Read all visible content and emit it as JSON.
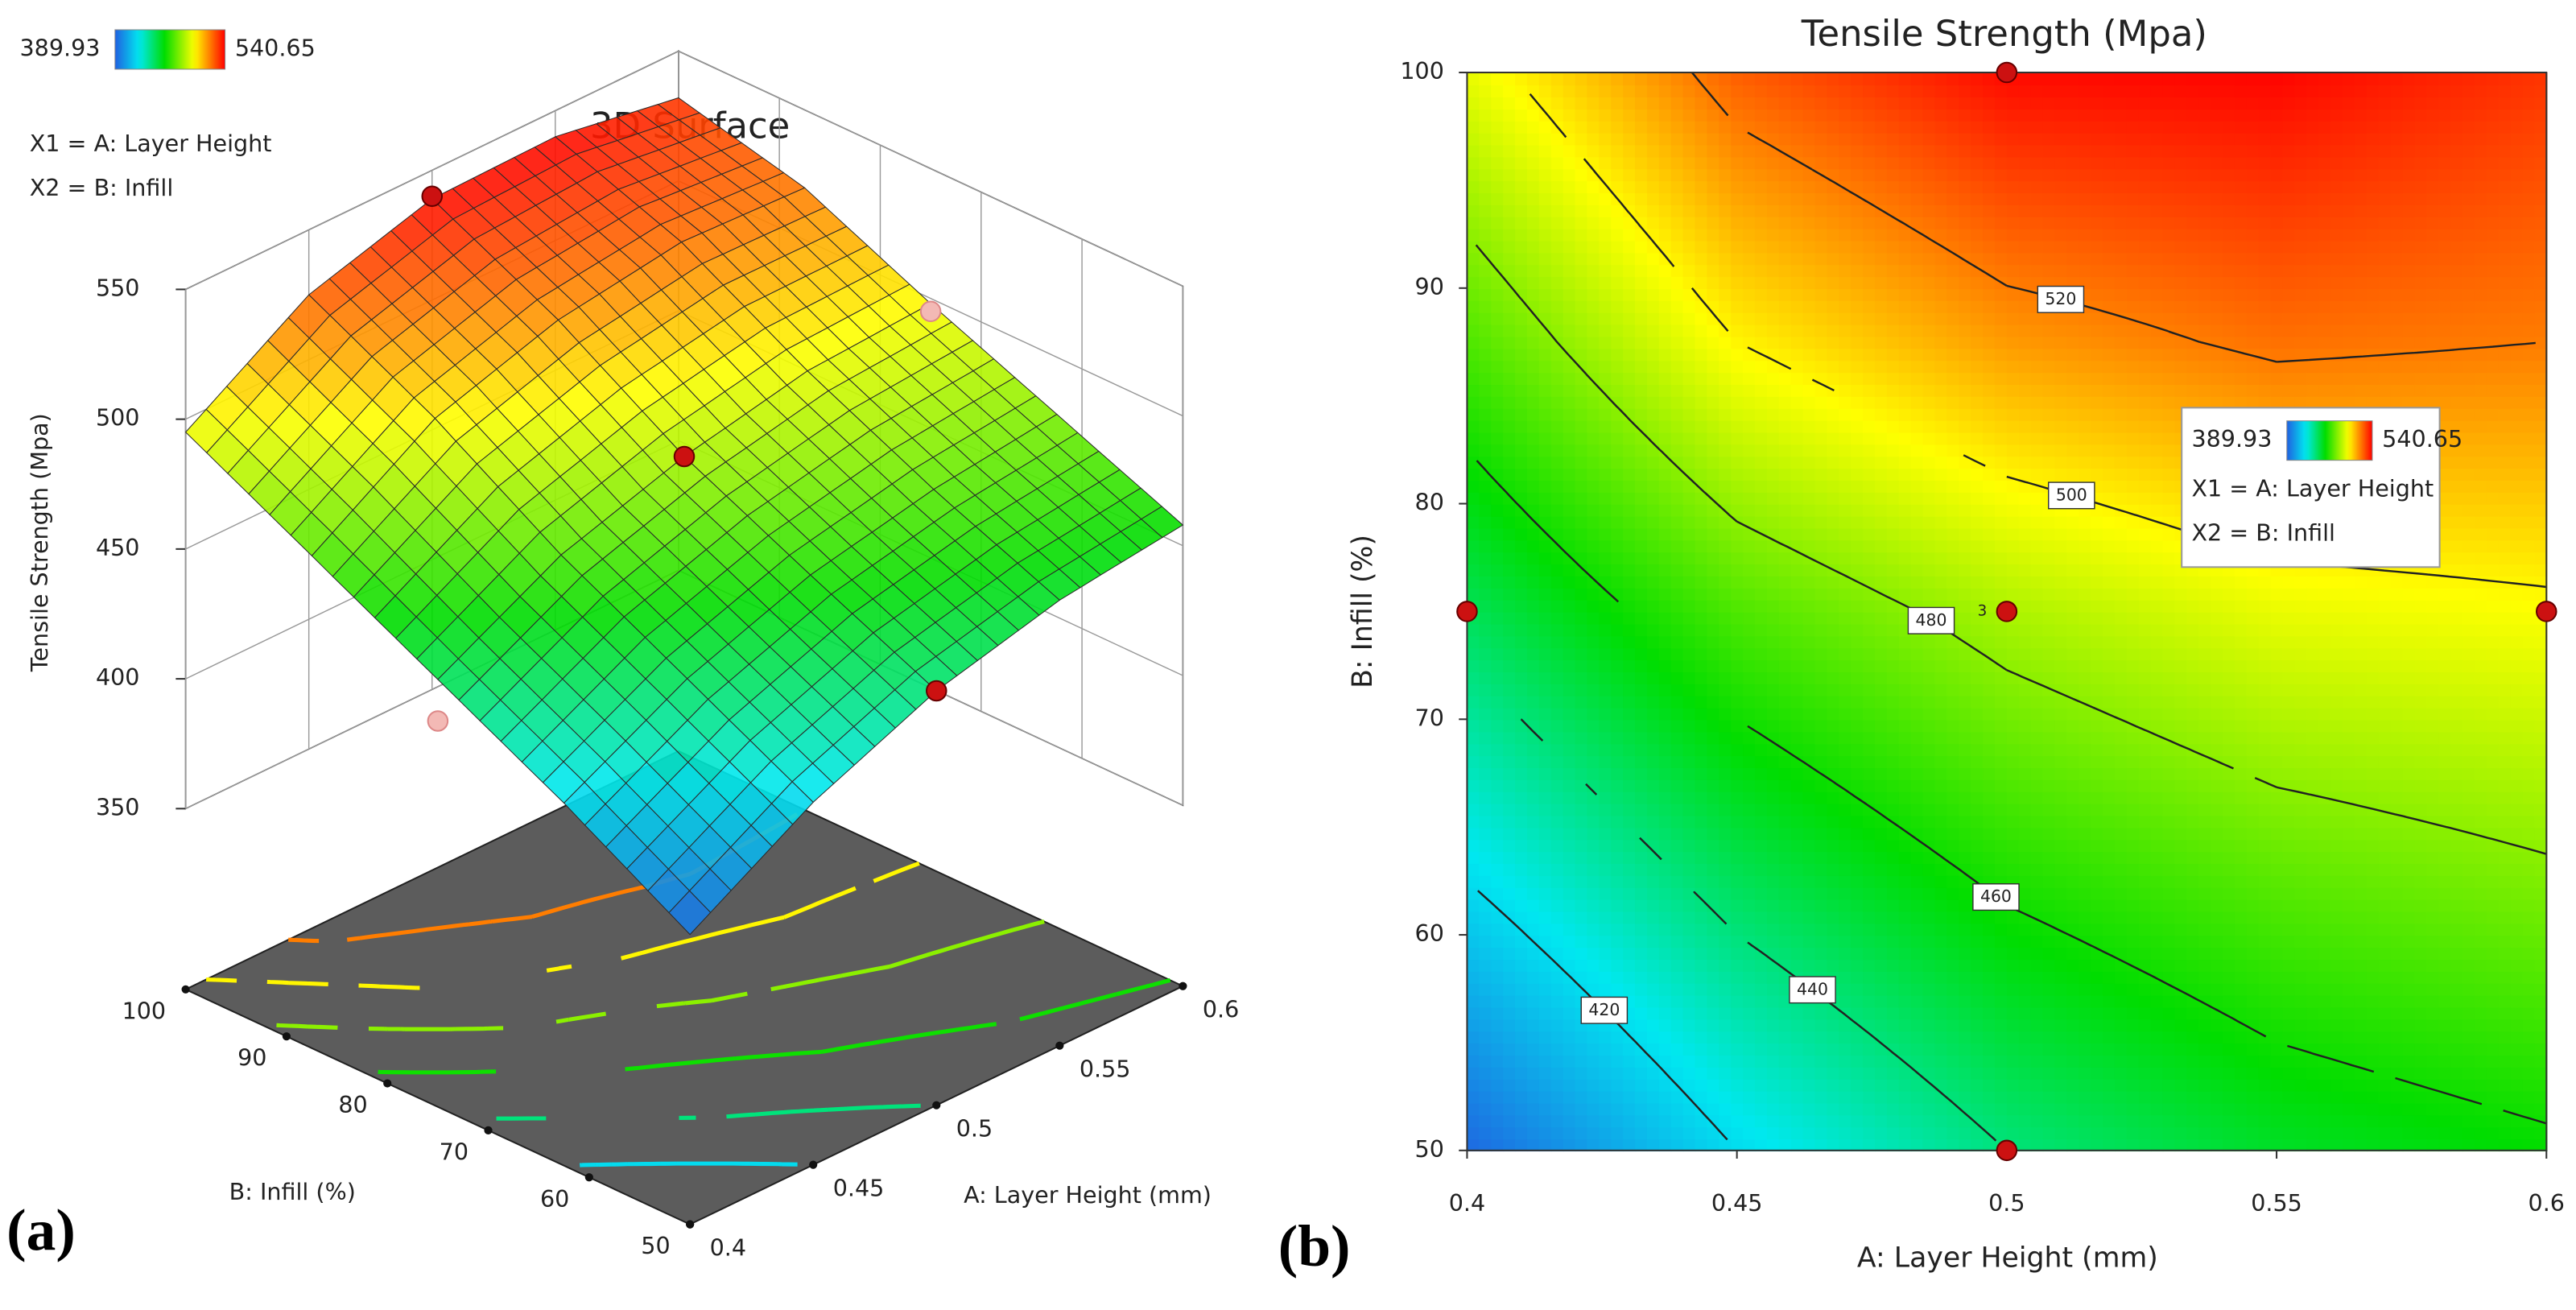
{
  "chart_data": [
    {
      "type": "surface",
      "title": "3D Surface",
      "panel_label": "(a)",
      "colorbar": [
        389.93,
        540.65
      ],
      "notes": [
        "X1 = A: Layer Height",
        "X2 = B: Infill"
      ],
      "xlabel": "A: Layer Height (mm)",
      "ylabel": "B: Infill (%)",
      "zlabel": "Tensile Strength (Mpa)",
      "x": [
        0.4,
        0.45,
        0.5,
        0.55,
        0.6
      ],
      "y": [
        50,
        62.5,
        75,
        87.5,
        100
      ],
      "z": [
        [
          392,
          420,
          440,
          452,
          458
        ],
        [
          420,
          445,
          462,
          472,
          478
        ],
        [
          445,
          470,
          485,
          495,
          498
        ],
        [
          470,
          500,
          515,
          522,
          520
        ],
        [
          495,
          525,
          539,
          540,
          532
        ]
      ],
      "xlim": [
        0.4,
        0.6
      ],
      "xticks": [
        0.4,
        0.45,
        0.5,
        0.55,
        0.6
      ],
      "ylim": [
        50,
        100
      ],
      "yticks": [
        50,
        60,
        70,
        80,
        90,
        100
      ],
      "zlim": [
        350,
        550
      ],
      "zticks": [
        350,
        400,
        450,
        500,
        550
      ],
      "levels": [
        420,
        440,
        460,
        480,
        500,
        520,
        540
      ],
      "points": {
        "x": [
          0.5,
          0.5,
          0.5,
          0.4,
          0.6
        ],
        "y": [
          100,
          75,
          50,
          75,
          75
        ],
        "z": [
          540,
          485,
          440,
          429,
          495
        ]
      }
    },
    {
      "type": "contour",
      "title": "Tensile Strength (Mpa)",
      "panel_label": "(b)",
      "colorbar": [
        389.93,
        540.65
      ],
      "notes": [
        "X1 = A: Layer Height",
        "X2 = B: Infill"
      ],
      "xlabel": "A: Layer Height (mm)",
      "ylabel": "B: Infill (%)",
      "x": [
        0.4,
        0.45,
        0.5,
        0.55,
        0.6
      ],
      "y": [
        50,
        62.5,
        75,
        87.5,
        100
      ],
      "z": [
        [
          392,
          420,
          440,
          452,
          458
        ],
        [
          420,
          445,
          462,
          472,
          478
        ],
        [
          445,
          470,
          485,
          495,
          498
        ],
        [
          470,
          500,
          515,
          522,
          520
        ],
        [
          495,
          525,
          539,
          540,
          532
        ]
      ],
      "xlim": [
        0.4,
        0.6
      ],
      "xticks": [
        0.4,
        0.45,
        0.5,
        0.55,
        0.6
      ],
      "ylim": [
        50,
        100
      ],
      "yticks": [
        50,
        60,
        70,
        80,
        90,
        100
      ],
      "levels": [
        420,
        440,
        460,
        480,
        500,
        520,
        540
      ],
      "points": {
        "x": [
          0.4,
          0.5,
          0.5,
          0.5,
          0.6
        ],
        "y": [
          75,
          100,
          75,
          50,
          75
        ]
      },
      "replicates": 3
    }
  ]
}
